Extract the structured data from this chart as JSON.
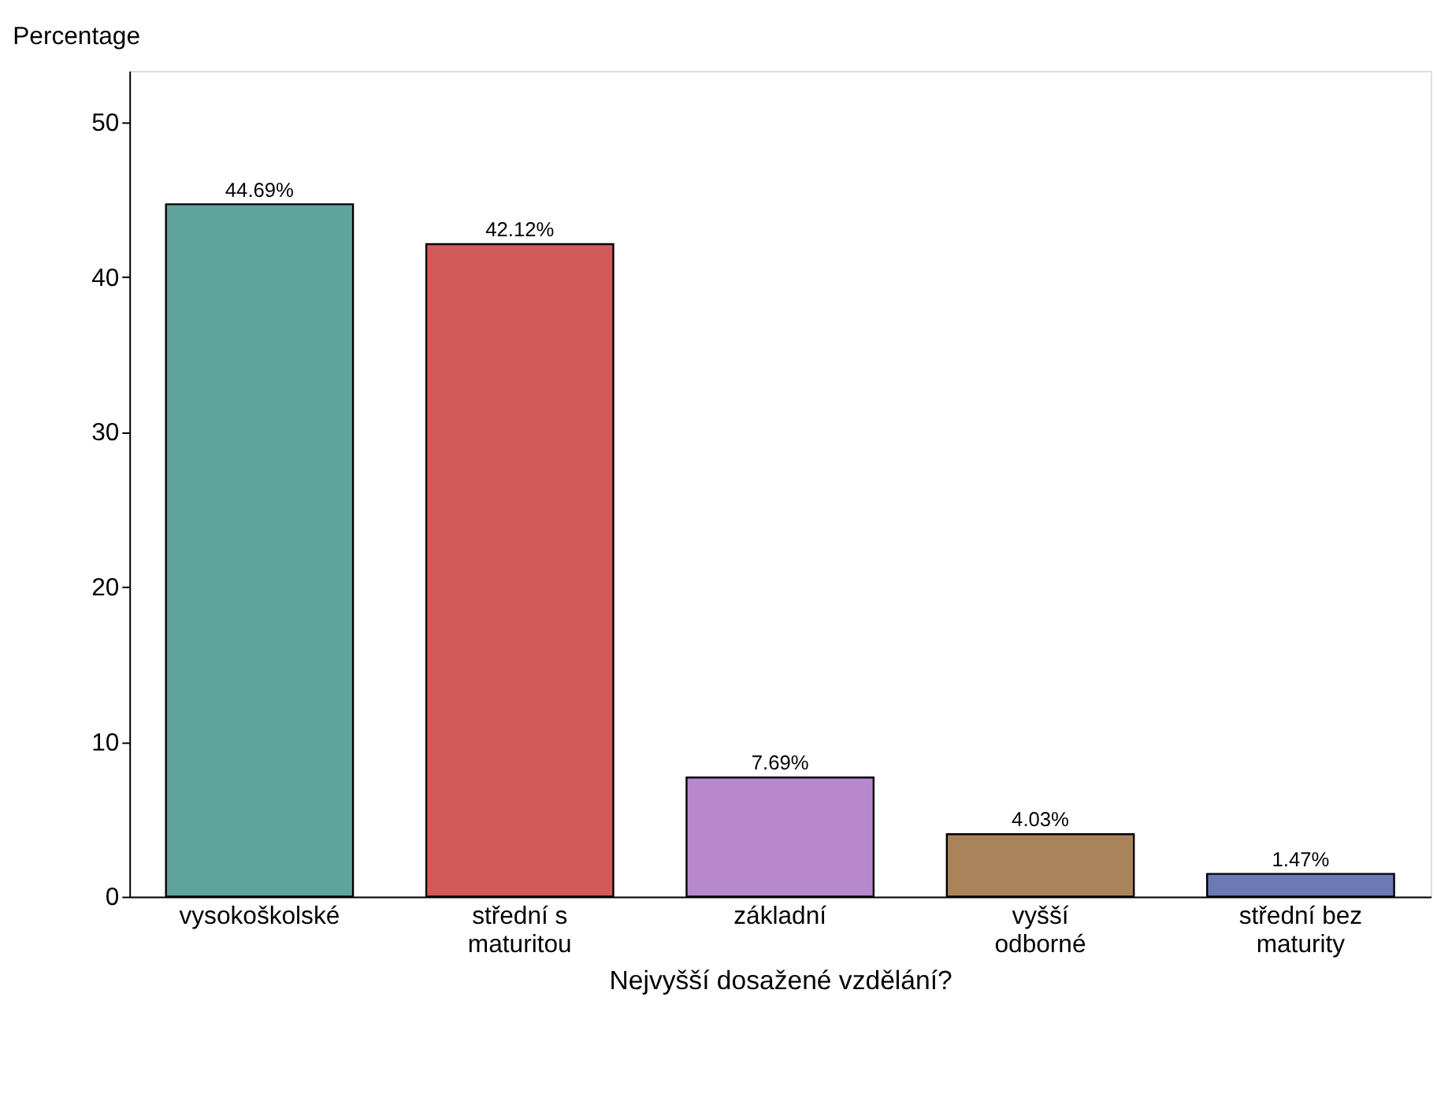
{
  "chart_data": {
    "type": "bar",
    "xlabel": "Nejvyšší dosažené vzdělání?",
    "ylabel": "Percentage",
    "categories": [
      "vysokoškolské",
      "střední s maturitou",
      "základní",
      "vyšší odborné",
      "střední bez maturity"
    ],
    "values": [
      44.69,
      42.12,
      7.69,
      4.03,
      1.47
    ],
    "colors": [
      "#5fa39b",
      "#d25a58",
      "#b788cd",
      "#a9835a",
      "#6b79b5"
    ],
    "value_labels": [
      "44.69%",
      "42.12%",
      "7.69%",
      "4.03%",
      "1.47%"
    ],
    "ylim": [
      0,
      53.3
    ],
    "yticks": [
      0,
      10,
      20,
      30,
      40,
      50
    ],
    "grid": false
  }
}
